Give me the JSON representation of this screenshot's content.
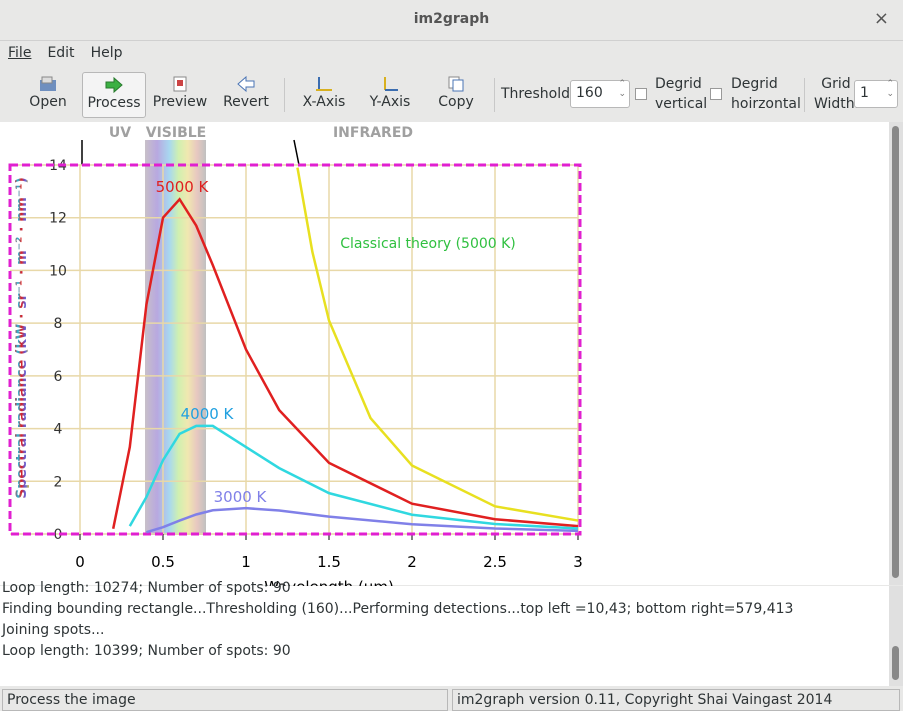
{
  "window": {
    "title": "im2graph"
  },
  "menu": [
    "File",
    "Edit",
    "Help"
  ],
  "toolbar": {
    "buttons": [
      "Open",
      "Process",
      "Preview",
      "Revert",
      "X-Axis",
      "Y-Axis",
      "Copy"
    ],
    "threshold_label": "Threshold:",
    "threshold": 160,
    "degrid_vertical": "Degrid vertical",
    "degrid_horizontal": "Degrid hoirzontal",
    "grid_width_label": "Grid Width:",
    "grid_width": 1
  },
  "image": {
    "type": "line",
    "ylabel": "Spectral radiance (kW · sr⁻¹ · m⁻² · nm⁻¹)",
    "xlabel": "Wavelength (μm)",
    "regions": [
      "UV",
      "VISIBLE",
      "INFRARED"
    ],
    "xlim": [
      0,
      3
    ],
    "ylim": [
      0,
      14
    ],
    "xticks": [
      0,
      0.5,
      1,
      1.5,
      2,
      2.5,
      3
    ],
    "yticks": [
      0,
      2,
      4,
      6,
      8,
      10,
      12,
      14
    ],
    "grid": true,
    "series": [
      {
        "name": "5000 K",
        "color": "#e02020",
        "x": [
          0.2,
          0.3,
          0.4,
          0.5,
          0.6,
          0.7,
          0.8,
          1.0,
          1.2,
          1.5,
          2.0,
          2.5,
          3.0
        ],
        "values": [
          0.2,
          3.3,
          8.7,
          12.0,
          12.7,
          11.7,
          10.2,
          7.0,
          4.7,
          2.7,
          1.15,
          0.56,
          0.3
        ]
      },
      {
        "name": "4000 K",
        "color": "#30d8e0",
        "x": [
          0.3,
          0.4,
          0.5,
          0.6,
          0.7,
          0.8,
          1.0,
          1.2,
          1.5,
          2.0,
          2.5,
          3.0
        ],
        "values": [
          0.3,
          1.4,
          2.8,
          3.8,
          4.1,
          4.1,
          3.3,
          2.5,
          1.55,
          0.73,
          0.38,
          0.21
        ]
      },
      {
        "name": "3000 K",
        "color": "#8080e8",
        "x": [
          0.4,
          0.5,
          0.6,
          0.7,
          0.8,
          1.0,
          1.2,
          1.5,
          2.0,
          2.5,
          3.0
        ],
        "values": [
          0.07,
          0.26,
          0.51,
          0.74,
          0.9,
          0.98,
          0.89,
          0.66,
          0.37,
          0.21,
          0.12
        ]
      },
      {
        "name": "Classical theory (5000 K)",
        "color": "#e8e020",
        "x": [
          1.31,
          1.4,
          1.5,
          1.75,
          2.0,
          2.5,
          3.0
        ],
        "values": [
          13.9,
          10.7,
          8.1,
          4.4,
          2.6,
          1.05,
          0.51
        ]
      }
    ]
  },
  "log": [
    "Loop length: 10274; Number of spots: 90",
    "Finding bounding rectangle...Thresholding (160)...Performing detections...top left =10,43; bottom right=579,413",
    "Joining spots...",
    "Loop length: 10399; Number of spots: 90"
  ],
  "status": [
    "Process the image",
    "im2graph version 0.11, Copyright Shai Vaingast 2014"
  ]
}
